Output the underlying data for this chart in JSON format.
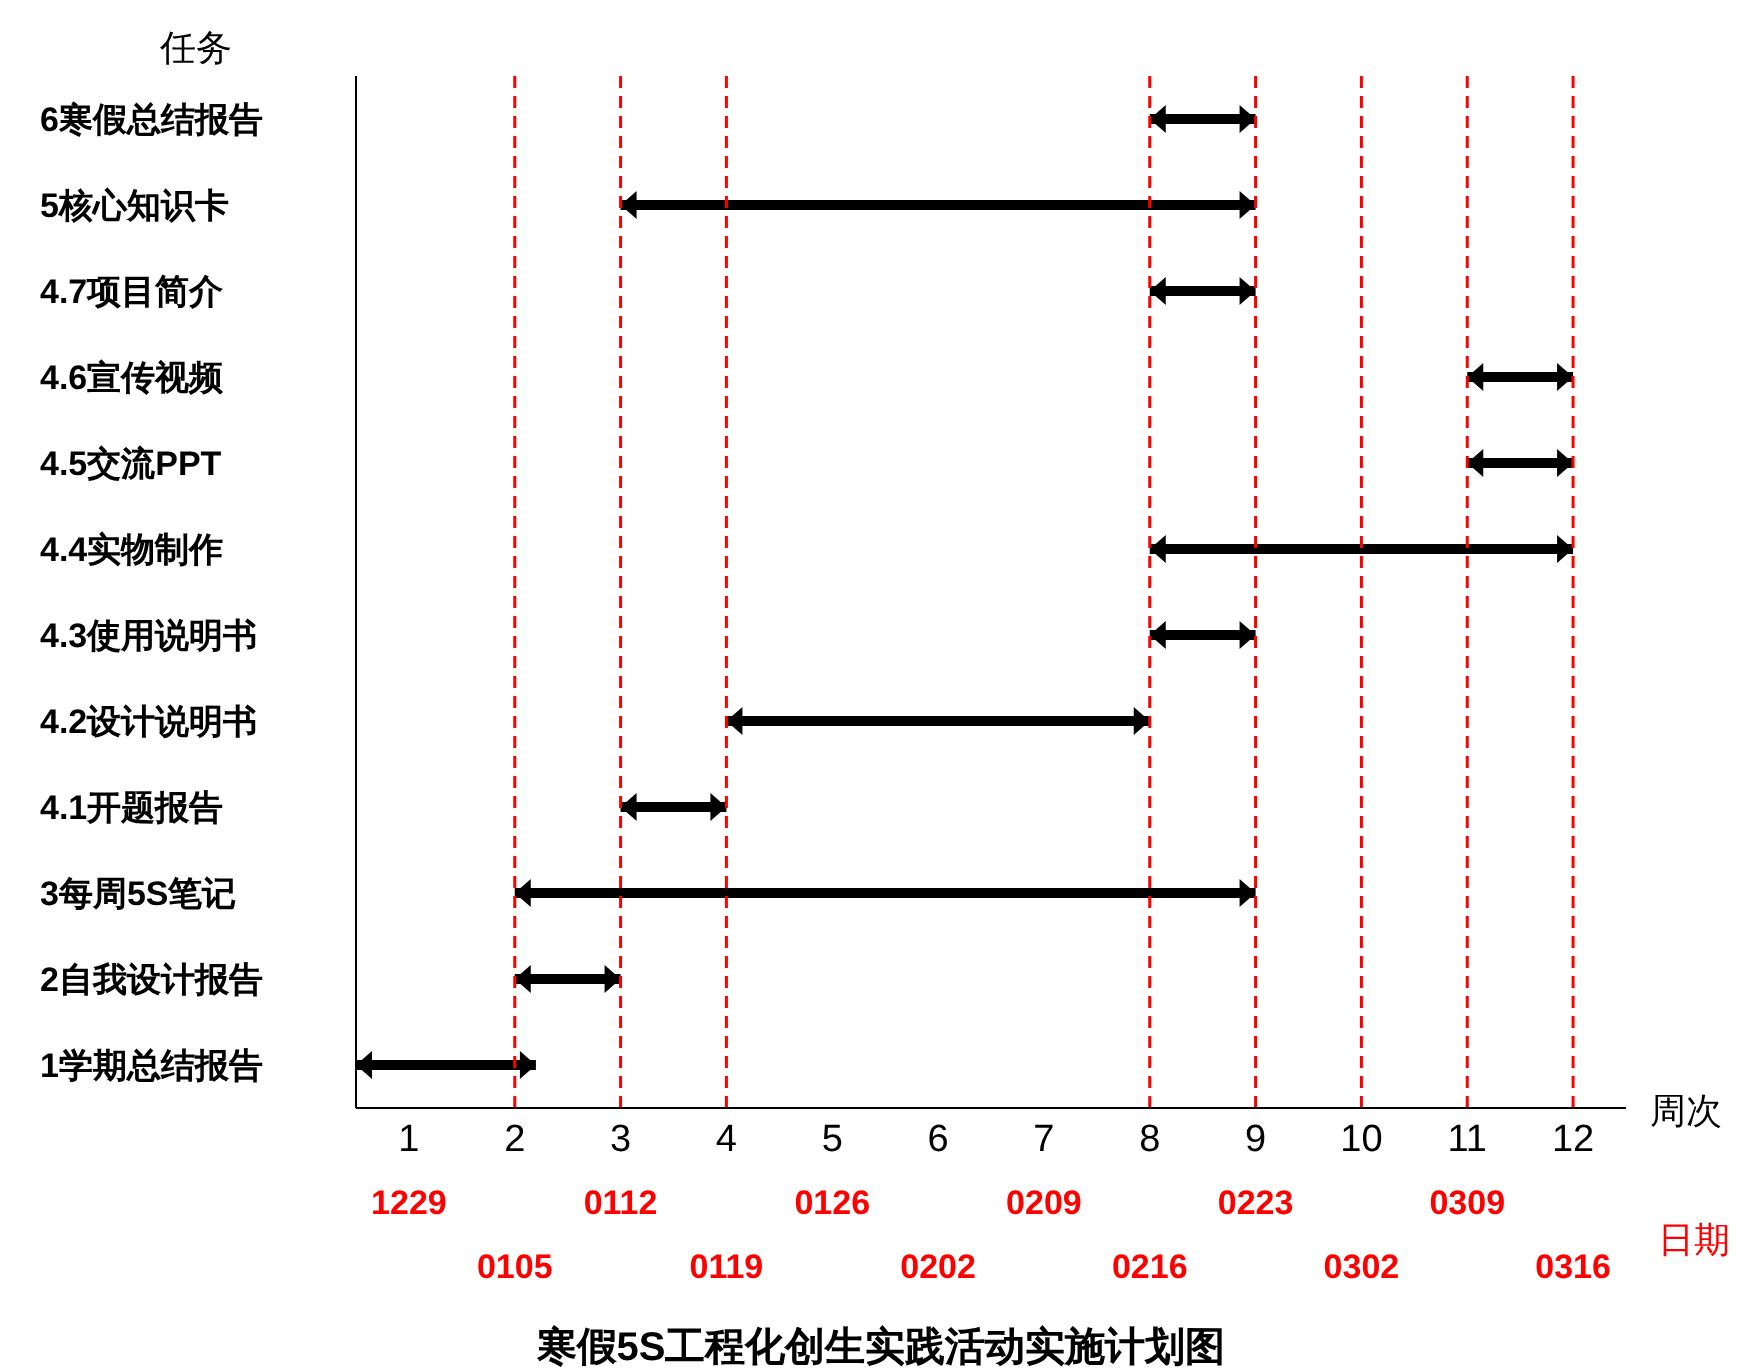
{
  "chart_data": {
    "type": "bar",
    "orientation": "horizontal",
    "title": "寒假5S工程化创生实践活动实施计划图",
    "xlabel": "周次",
    "ylabel": "任务",
    "categories": [
      "6寒假总结报告",
      "5核心知识卡",
      "4.7项目简介",
      "4.6宣传视频",
      "4.5交流PPT",
      "4.4实物制作",
      "4.3使用说明书",
      "4.2设计说明书",
      "4.1开题报告",
      "3每周5S笔记",
      "2自我设计报告",
      "1学期总结报告"
    ],
    "base": [
      8,
      3,
      8,
      11,
      11,
      8,
      8,
      4,
      3,
      2,
      2,
      0.5
    ],
    "values": [
      1,
      6,
      1,
      1,
      1,
      4,
      1,
      4,
      1,
      7,
      1,
      1.7
    ],
    "color": "#000000",
    "xlim": [
      0.5,
      12.5
    ],
    "xticks": [
      1,
      2,
      3,
      4,
      5,
      6,
      7,
      8,
      9,
      10,
      11,
      12
    ],
    "annotations": [
      "1229",
      "0105",
      "0112",
      "0119",
      "0126",
      "0202",
      "0209",
      "0216",
      "0223",
      "0302",
      "0309",
      "0316",
      "日期"
    ],
    "ref_lines": [
      {
        "axis": "x",
        "value": 2,
        "color": "#ff0000",
        "line_style": "dashed"
      },
      {
        "axis": "x",
        "value": 3,
        "color": "#ff0000",
        "line_style": "dashed"
      },
      {
        "axis": "x",
        "value": 4,
        "color": "#ff0000",
        "line_style": "dashed"
      },
      {
        "axis": "x",
        "value": 8,
        "color": "#ff0000",
        "line_style": "dashed"
      },
      {
        "axis": "x",
        "value": 9,
        "color": "#ff0000",
        "line_style": "dashed"
      },
      {
        "axis": "x",
        "value": 10,
        "color": "#ff0000",
        "line_style": "dashed"
      },
      {
        "axis": "x",
        "value": 11,
        "color": "#ff0000",
        "line_style": "dashed"
      },
      {
        "axis": "x",
        "value": 12,
        "color": "#ff0000",
        "line_style": "dashed"
      }
    ],
    "grid": false,
    "legend": false
  }
}
